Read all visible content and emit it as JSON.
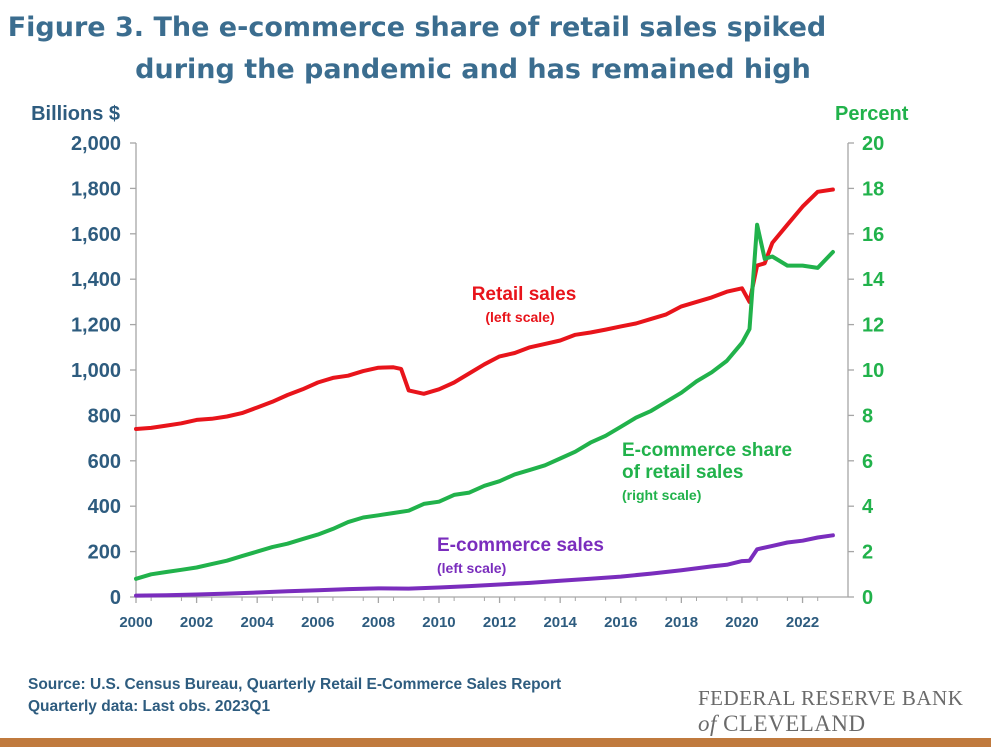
{
  "header": {
    "title_line1": "Figure 3. The e-commerce share of retail sales spiked",
    "title_line2": "during the pandemic and has remained high"
  },
  "chart_data": {
    "type": "line",
    "left_axis_label": "Billions $",
    "right_axis_label": "Percent",
    "xlim": [
      2000,
      2023.5
    ],
    "ylim_left": [
      0,
      2000
    ],
    "ylim_right": [
      0,
      20
    ],
    "x_ticks": [
      "2000",
      "2002",
      "2004",
      "2006",
      "2008",
      "2010",
      "2012",
      "2014",
      "2016",
      "2018",
      "2020",
      "2022"
    ],
    "y_ticks_left": [
      "0",
      "200",
      "400",
      "600",
      "800",
      "1,000",
      "1,200",
      "1,400",
      "1,600",
      "1,800",
      "2,000"
    ],
    "y_ticks_right": [
      "0",
      "2",
      "4",
      "6",
      "8",
      "10",
      "12",
      "14",
      "16",
      "18",
      "20"
    ],
    "colors": {
      "retail": "#e8141b",
      "ecom_share": "#21b24b",
      "ecom_sales": "#7a2dbd",
      "axis_left": "#2e5c7f",
      "axis_right": "#21b24b"
    },
    "series": [
      {
        "name": "Retail sales",
        "note": "(left scale)",
        "axis": "left",
        "x": [
          2000,
          2000.5,
          2001,
          2001.5,
          2002,
          2002.5,
          2003,
          2003.5,
          2004,
          2004.5,
          2005,
          2005.5,
          2006,
          2006.5,
          2007,
          2007.5,
          2008,
          2008.5,
          2008.75,
          2009,
          2009.5,
          2010,
          2010.5,
          2011,
          2011.5,
          2012,
          2012.5,
          2013,
          2013.5,
          2014,
          2014.5,
          2015,
          2015.5,
          2016,
          2016.5,
          2017,
          2017.5,
          2018,
          2018.5,
          2019,
          2019.5,
          2020,
          2020.25,
          2020.5,
          2020.75,
          2021,
          2021.5,
          2022,
          2022.5,
          2023
        ],
        "values": [
          740,
          745,
          755,
          765,
          780,
          785,
          795,
          810,
          835,
          860,
          890,
          915,
          945,
          965,
          975,
          995,
          1010,
          1012,
          1005,
          910,
          895,
          915,
          945,
          985,
          1025,
          1060,
          1075,
          1100,
          1115,
          1130,
          1155,
          1165,
          1178,
          1192,
          1205,
          1225,
          1245,
          1280,
          1300,
          1320,
          1345,
          1360,
          1300,
          1460,
          1470,
          1560,
          1640,
          1720,
          1785,
          1795
        ]
      },
      {
        "name": "E-commerce share of retail sales",
        "name_line1": "E-commerce share",
        "name_line2": "of retail sales",
        "note": "(right scale)",
        "axis": "right",
        "x": [
          2000,
          2000.5,
          2001,
          2001.5,
          2002,
          2002.5,
          2003,
          2003.5,
          2004,
          2004.5,
          2005,
          2005.5,
          2006,
          2006.5,
          2007,
          2007.5,
          2008,
          2008.5,
          2009,
          2009.5,
          2010,
          2010.5,
          2011,
          2011.5,
          2012,
          2012.5,
          2013,
          2013.5,
          2014,
          2014.5,
          2015,
          2015.5,
          2016,
          2016.5,
          2017,
          2017.5,
          2018,
          2018.5,
          2019,
          2019.5,
          2020,
          2020.25,
          2020.5,
          2020.75,
          2021,
          2021.5,
          2022,
          2022.5,
          2023
        ],
        "values": [
          0.8,
          1.0,
          1.1,
          1.2,
          1.3,
          1.45,
          1.6,
          1.8,
          2.0,
          2.2,
          2.35,
          2.55,
          2.75,
          3.0,
          3.3,
          3.5,
          3.6,
          3.7,
          3.8,
          4.1,
          4.2,
          4.5,
          4.6,
          4.9,
          5.1,
          5.4,
          5.6,
          5.8,
          6.1,
          6.4,
          6.8,
          7.1,
          7.5,
          7.9,
          8.2,
          8.6,
          9.0,
          9.5,
          9.9,
          10.4,
          11.2,
          11.8,
          16.4,
          14.9,
          15.0,
          14.6,
          14.6,
          14.5,
          15.2
        ]
      },
      {
        "name": "E-commerce sales",
        "note": "(left scale)",
        "axis": "left",
        "x": [
          2000,
          2001,
          2002,
          2003,
          2004,
          2005,
          2006,
          2007,
          2008,
          2009,
          2010,
          2011,
          2012,
          2013,
          2014,
          2015,
          2016,
          2017,
          2018,
          2019,
          2019.5,
          2020,
          2020.25,
          2020.5,
          2021,
          2021.5,
          2022,
          2022.5,
          2023
        ],
        "values": [
          6,
          8,
          11,
          15,
          20,
          25,
          30,
          35,
          38,
          37,
          42,
          48,
          55,
          62,
          72,
          80,
          90,
          103,
          118,
          135,
          142,
          158,
          160,
          210,
          225,
          240,
          248,
          262,
          272
        ]
      }
    ]
  },
  "footer": {
    "source_line1": "Source: U.S. Census Bureau, Quarterly Retail E-Commerce Sales Report",
    "source_line2": "Quarterly data: Last obs. 2023Q1",
    "logo_line1": "FEDERAL RESERVE BANK",
    "logo_of": "of",
    "logo_line2": "CLEVELAND"
  }
}
